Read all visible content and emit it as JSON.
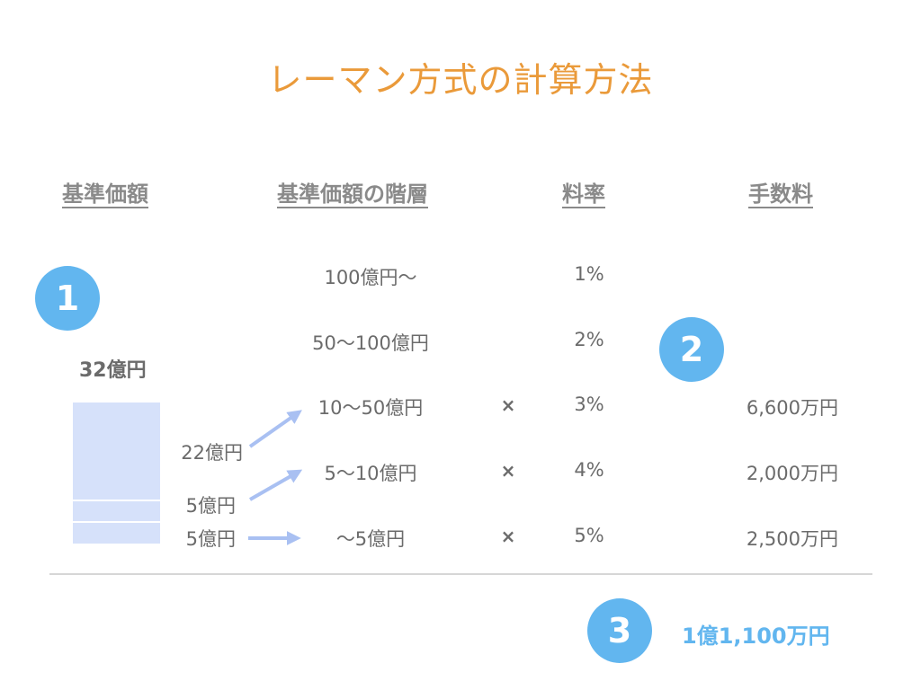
{
  "title": "レーマン方式の計算方法",
  "headers": {
    "base_value": "基準価額",
    "tiers": "基準価額の階層",
    "rate": "料率",
    "fee": "手数料"
  },
  "steps": [
    "1",
    "2",
    "3"
  ],
  "base_amount": "32億円",
  "breakdown": [
    "22億円",
    "5億円",
    "5億円"
  ],
  "tiers": [
    {
      "range": "100億円〜",
      "rate": "1%",
      "times": "",
      "fee": ""
    },
    {
      "range": "50〜100億円",
      "rate": "2%",
      "times": "",
      "fee": ""
    },
    {
      "range": "10〜50億円",
      "rate": "3%",
      "times": "×",
      "fee": "6,600万円"
    },
    {
      "range": "5〜10億円",
      "rate": "4%",
      "times": "×",
      "fee": "2,000万円"
    },
    {
      "range": "〜5億円",
      "rate": "5%",
      "times": "×",
      "fee": "2,500万円"
    }
  ],
  "total": "1億1,100万円",
  "colors": {
    "title": "#EA9A3A",
    "accent": "#62B6EF",
    "block": "#D6E1FA",
    "arrow": "#A9C0F2",
    "text": "#6b6b6b",
    "header": "#8a8a8a"
  }
}
